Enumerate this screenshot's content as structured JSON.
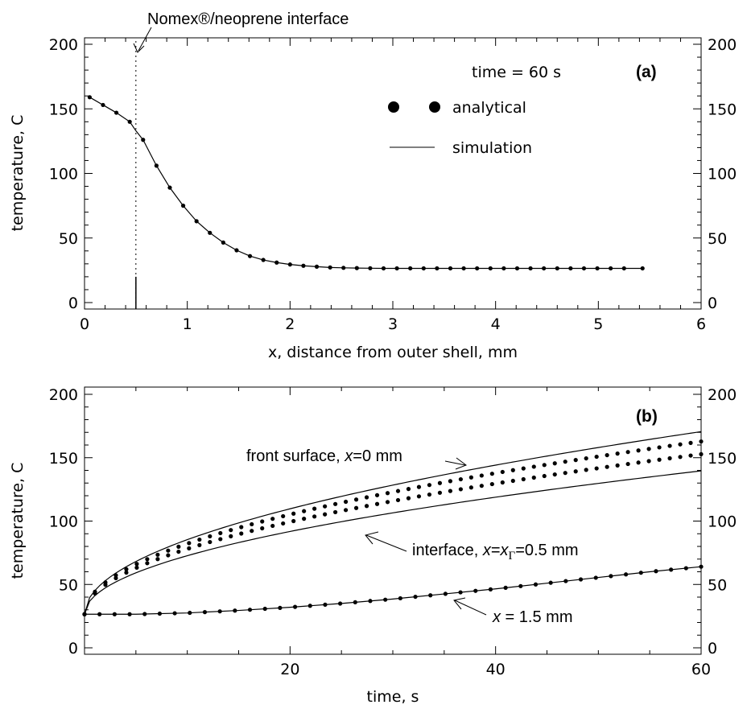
{
  "chart_data": [
    {
      "type": "line",
      "panel_label": "(a)",
      "time_note": "time = 60 s",
      "xlabel": "x, distance from outer shell, mm",
      "ylabel": "temperature, C",
      "xlim": [
        0,
        6
      ],
      "ylim": [
        0,
        200
      ],
      "x_ticks": [
        "0",
        "1",
        "2",
        "3",
        "4",
        "5",
        "6"
      ],
      "y_ticks": [
        "0",
        "50",
        "100",
        "150",
        "200"
      ],
      "interface": {
        "x": 0.5,
        "label": "Nomex®/neoprene interface"
      },
      "legend": {
        "analytical": "analytical",
        "simulation": "simulation"
      },
      "series": [
        {
          "name": "analytical",
          "style": "dots",
          "x": [
            0.05,
            0.18,
            0.31,
            0.44,
            0.57,
            0.7,
            0.83,
            0.96,
            1.09,
            1.22,
            1.35,
            1.48,
            1.61,
            1.74,
            1.87,
            2.0,
            2.13,
            2.26,
            2.39,
            2.52,
            2.65,
            2.78,
            2.91,
            3.04,
            3.17,
            3.3,
            3.43,
            3.56,
            3.69,
            3.82,
            3.95,
            4.08,
            4.21,
            4.34,
            4.47,
            4.6,
            4.73,
            4.86,
            4.99,
            5.12,
            5.25,
            5.43
          ],
          "y": [
            159,
            153,
            147,
            140,
            126,
            106,
            89,
            75,
            63,
            54,
            46.5,
            40.5,
            36,
            33,
            31,
            29.5,
            28.5,
            27.8,
            27.2,
            26.9,
            26.7,
            26.6,
            26.5,
            26.5,
            26.5,
            26.5,
            26.5,
            26.5,
            26.5,
            26.5,
            26.5,
            26.5,
            26.5,
            26.5,
            26.5,
            26.5,
            26.5,
            26.5,
            26.5,
            26.5,
            26.5,
            26.5
          ]
        },
        {
          "name": "simulation",
          "style": "line",
          "x": [
            0.05,
            0.18,
            0.31,
            0.44,
            0.5,
            0.57,
            0.7,
            0.83,
            0.96,
            1.09,
            1.22,
            1.35,
            1.48,
            1.61,
            1.74,
            1.87,
            2.0,
            2.13,
            2.26,
            2.39,
            2.52,
            2.65,
            2.78,
            2.91,
            3.04,
            3.5,
            4.0,
            4.5,
            5.0,
            5.43
          ],
          "y": [
            159,
            153,
            147,
            140,
            133,
            126,
            106,
            89,
            75,
            63,
            54,
            46.5,
            40.5,
            36,
            33,
            31,
            29.5,
            28.5,
            27.8,
            27.2,
            26.9,
            26.7,
            26.6,
            26.5,
            26.5,
            26.5,
            26.5,
            26.5,
            26.5,
            26.5
          ]
        }
      ]
    },
    {
      "type": "line",
      "panel_label": "(b)",
      "xlabel": "time, s",
      "ylabel": "temperature, C",
      "xlim": [
        0,
        60
      ],
      "ylim": [
        0,
        200
      ],
      "x_ticks": [
        "20",
        "40",
        "60"
      ],
      "y_ticks": [
        "0",
        "50",
        "100",
        "150",
        "200"
      ],
      "annotations": {
        "front": {
          "text": "front surface, ",
          "var": "x",
          "rest": "=0 mm"
        },
        "interface": {
          "text": "interface, ",
          "var": "x",
          "eq": "=",
          "var2": "x",
          "sub": "Γ",
          "rest": "=0.5 mm"
        },
        "deep": {
          "var": "x",
          "rest": " = 1.5 mm"
        }
      },
      "series": [
        {
          "name": "front surface simulation",
          "style": "line",
          "T0": 26.5,
          "amp": 18.6,
          "location": "x=0 mm"
        },
        {
          "name": "front surface analytical",
          "style": "dots",
          "T0": 26.5,
          "amp": 17.6,
          "location": "x=0 mm"
        },
        {
          "name": "interface simulation",
          "style": "line",
          "T0": 26.5,
          "amp": 14.6,
          "location": "x=0.5 mm"
        },
        {
          "name": "interface analytical",
          "style": "dots",
          "T0": 26.5,
          "amp": 16.3,
          "location": "x=0.5 mm"
        },
        {
          "name": "1.5 mm simulation",
          "style": "line",
          "location": "x=1.5 mm",
          "x": [
            0,
            5,
            10,
            15,
            20,
            25,
            30,
            35,
            40,
            45,
            50,
            55,
            60
          ],
          "y": [
            26.5,
            26.5,
            27.5,
            29.5,
            32,
            35,
            38.5,
            42.5,
            46.5,
            51,
            55.5,
            60,
            64
          ]
        },
        {
          "name": "1.5 mm analytical",
          "style": "dots",
          "location": "x=1.5 mm",
          "x": [
            0,
            5,
            10,
            15,
            20,
            25,
            30,
            35,
            40,
            45,
            50,
            55,
            60
          ],
          "y": [
            26.5,
            26.5,
            27.5,
            29.5,
            32,
            35,
            38.5,
            42.5,
            46.5,
            51,
            55.5,
            60,
            64
          ]
        }
      ]
    }
  ]
}
